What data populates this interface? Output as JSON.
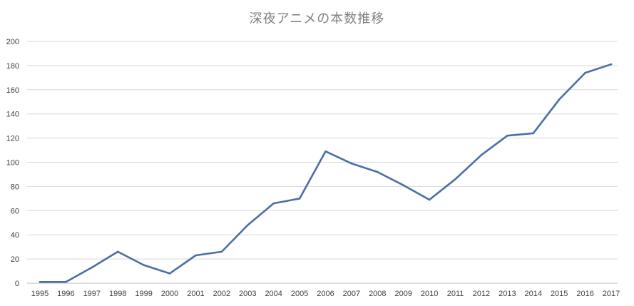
{
  "chart_data": {
    "type": "line",
    "title": "深夜アニメの本数推移",
    "xlabel": "",
    "ylabel": "",
    "x": [
      "1995",
      "1996",
      "1997",
      "1998",
      "1999",
      "2000",
      "2001",
      "2002",
      "2003",
      "2004",
      "2005",
      "2006",
      "2007",
      "2008",
      "2009",
      "2010",
      "2011",
      "2012",
      "2013",
      "2014",
      "2015",
      "2016",
      "2017"
    ],
    "series": [
      {
        "values": [
          1,
          1,
          13,
          26,
          15,
          8,
          23,
          26,
          48,
          66,
          70,
          109,
          99,
          92,
          81,
          69,
          86,
          106,
          122,
          124,
          152,
          174,
          181
        ]
      }
    ],
    "ylim": [
      0,
      200
    ],
    "yticks": [
      0,
      20,
      40,
      60,
      80,
      100,
      120,
      140,
      160,
      180,
      200
    ],
    "grid": true,
    "legend": "none",
    "colors": {
      "line": "#4a6fa5",
      "grid": "#d9d9d9",
      "axis": "#bfbfbf"
    }
  }
}
